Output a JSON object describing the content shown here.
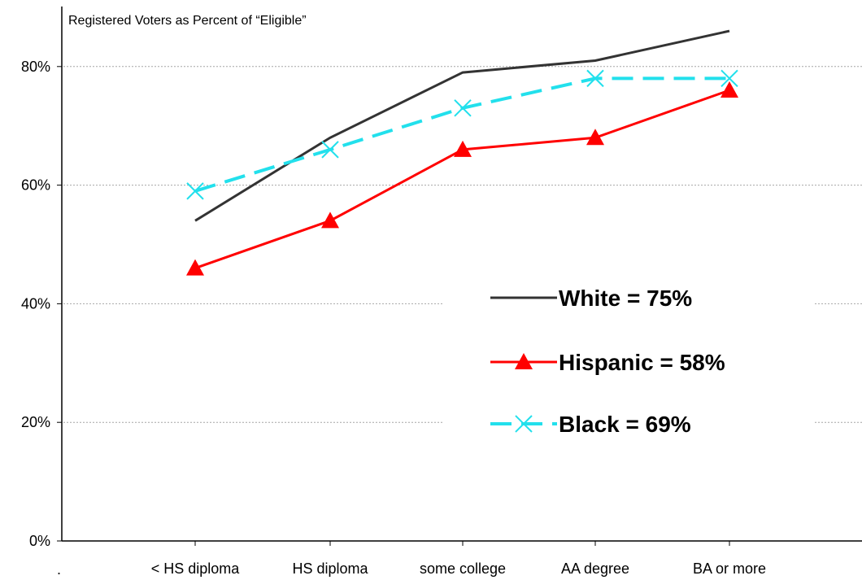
{
  "chart_data": {
    "type": "line",
    "title": "Registered Voters as Percent of “Eligible”",
    "xlabel": "",
    "ylabel": "",
    "categories": [
      "< HS diploma",
      "HS diploma",
      "some college",
      "AA degree",
      "BA or more"
    ],
    "y_ticks": [
      "0%",
      "20%",
      "40%",
      "60%",
      "80%"
    ],
    "ylim": [
      0,
      88
    ],
    "grid": "horizontal dotted",
    "legend_position": "center-right",
    "series": [
      {
        "name": "White = 75%",
        "values": [
          54,
          68,
          79,
          81,
          86
        ],
        "color": "#333333",
        "marker": "none",
        "dash": "solid"
      },
      {
        "name": "Hispanic = 58%",
        "values": [
          46,
          54,
          66,
          68,
          76
        ],
        "color": "#ff0000",
        "marker": "triangle",
        "dash": "solid"
      },
      {
        "name": "Black = 69%",
        "values": [
          59,
          66,
          73,
          78,
          78
        ],
        "color": "#22e0ec",
        "marker": "x",
        "dash": "dashed"
      }
    ],
    "extra_labels": [
      "."
    ]
  }
}
